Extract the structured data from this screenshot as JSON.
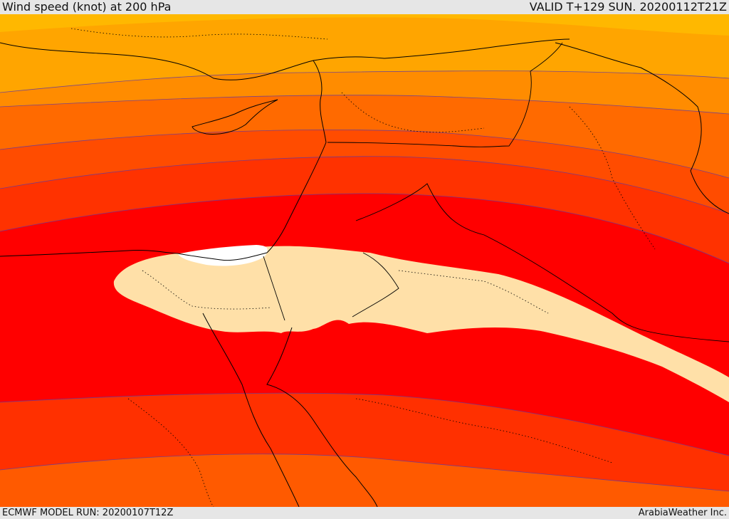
{
  "header": {
    "title": "Wind speed (knot) at 200 hPa",
    "valid_time": "VALID T+129 SUN. 20200112T21Z"
  },
  "footer": {
    "model_run": "ECMWF MODEL RUN: 20200107T12Z",
    "credit": "ArabiaWeather Inc."
  },
  "map": {
    "field": "wind speed at 200 hPa",
    "band_colors": [
      "#ffc800",
      "#ffa500",
      "#ff8c00",
      "#ff7300",
      "#ff5a00",
      "#ff4000",
      "#ff2800",
      "#ff0000",
      "#ff2000",
      "#ff3c00",
      "#ff5a00",
      "#ffe0a8",
      "#ffffff"
    ],
    "core_color": "#ffe0a8",
    "max_color": "#ffffff",
    "contour_color": "#5a3aa8",
    "coastline_color": "#000000"
  }
}
